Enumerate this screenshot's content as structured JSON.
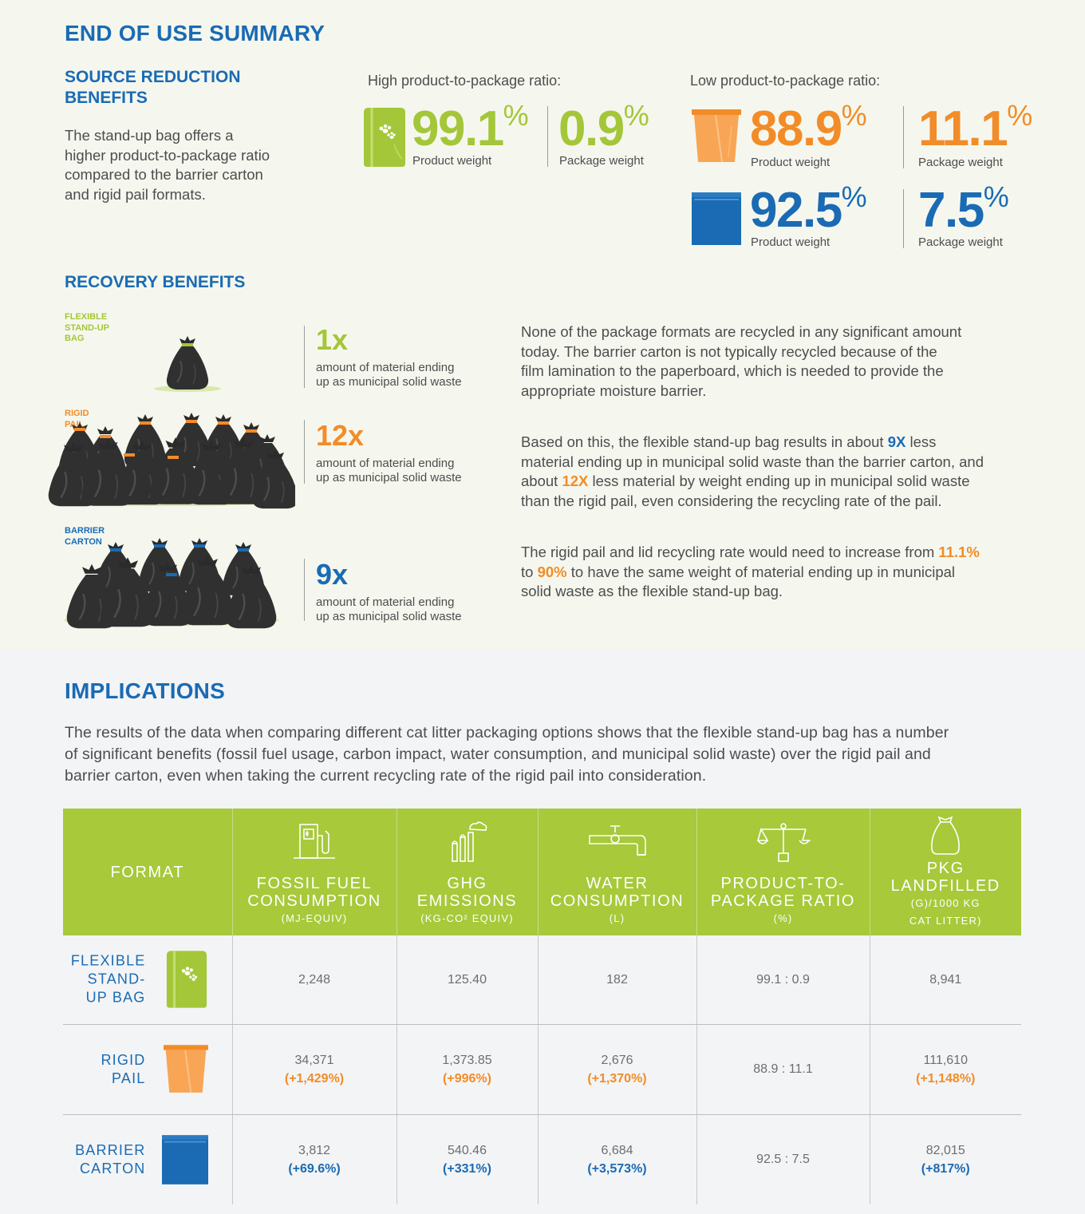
{
  "summary": {
    "title": "END OF USE SUMMARY",
    "source": {
      "heading_line1": "SOURCE REDUCTION",
      "heading_line2": "BENEFITS",
      "text_lines": [
        "The stand-up bag offers a",
        "higher product-to-package ratio",
        "compared to the barrier carton",
        "and rigid pail formats."
      ]
    },
    "high_ratio": {
      "heading": "High product-to-package ratio:",
      "product_value": "99.1",
      "package_value": "0.9",
      "product_label": "Product weight",
      "package_label": "Package weight"
    },
    "low_ratio": {
      "heading": "Low product-to-package ratio:",
      "pail_product_value": "88.9",
      "pail_package_value": "11.1",
      "carton_product_value": "92.5",
      "carton_package_value": "7.5",
      "product_label": "Product weight",
      "package_label": "Package weight"
    },
    "percent_sign": "%"
  },
  "recovery": {
    "heading": "RECOVERY BENEFITS",
    "items": [
      {
        "label_lines": [
          "FLEXIBLE",
          "STAND-UP",
          "BAG"
        ],
        "multiplier": "1x",
        "desc_line1": "amount of material ending",
        "desc_line2": "up as municipal solid waste",
        "color": "#a4c639"
      },
      {
        "label_lines": [
          "RIGID",
          "PAIL"
        ],
        "multiplier": "12x",
        "desc_line1": "amount of material ending",
        "desc_line2": "up as municipal solid waste",
        "color": "#f28c28"
      },
      {
        "label_lines": [
          "BARRIER",
          "CARTON"
        ],
        "multiplier": "9x",
        "desc_line1": "amount of material ending",
        "desc_line2": "up as municipal solid waste",
        "color": "#1a6bb4"
      }
    ],
    "para1_lines": [
      "None of the package formats are recycled in any significant amount",
      "today. The barrier carton is not typically recycled because of the",
      "film lamination to the paperboard, which is needed to provide the",
      "appropriate moisture barrier."
    ],
    "para2": {
      "l1a": "Based on this, the flexible stand-up bag results in about ",
      "l1b": "9X",
      "l1c": " less",
      "l2": "material ending up in municipal solid waste than the barrier carton, and",
      "l3a": "about ",
      "l3b": "12X",
      "l3c": " less material by weight ending up in municipal solid waste",
      "l4": "than the rigid pail, even considering the recycling rate of the pail."
    },
    "para3": {
      "l1a": "The rigid pail and lid recycling rate would need to increase from ",
      "l1b": "11.1%",
      "l2a": "to ",
      "l2b": "90%",
      "l2c": " to have the same weight of material ending up in municipal",
      "l3": "solid waste as the flexible stand-up bag."
    }
  },
  "implications": {
    "heading": "IMPLICATIONS",
    "text_lines": [
      "The results of the data when comparing different cat litter packaging options shows that the flexible stand-up bag has a number",
      "of significant benefits (fossil fuel usage, carbon impact, water consumption, and municipal solid waste) over the rigid pail and",
      "barrier carton, even when taking the current recycling rate of the rigid pail into consideration."
    ]
  },
  "table": {
    "headers": [
      {
        "main_lines": [
          "FORMAT"
        ],
        "sub_lines": [],
        "icon": ""
      },
      {
        "main_lines": [
          "FOSSIL FUEL",
          "CONSUMPTION"
        ],
        "sub_lines": [
          "(MJ-EQUIV)"
        ],
        "icon": "fuel-pump-icon"
      },
      {
        "main_lines": [
          "GHG",
          "EMISSIONS"
        ],
        "sub_lines": [
          "(KG-CO² EQUIV)"
        ],
        "icon": "factory-icon"
      },
      {
        "main_lines": [
          "WATER",
          "CONSUMPTION"
        ],
        "sub_lines": [
          "(L)"
        ],
        "icon": "faucet-icon"
      },
      {
        "main_lines": [
          "PRODUCT-TO-",
          "PACKAGE RATIO"
        ],
        "sub_lines": [
          "(%)"
        ],
        "icon": "scale-icon"
      },
      {
        "main_lines": [
          "PKG",
          "LANDFILLED"
        ],
        "sub_lines": [
          "(G)/1000 KG",
          "CAT LITTER)"
        ],
        "icon": "bag-icon"
      }
    ],
    "rows": [
      {
        "format_lines": [
          "FLEXIBLE",
          "STAND-",
          "UP BAG"
        ],
        "icon": "bag-icon",
        "cells": [
          {
            "value": "2,248",
            "pct": ""
          },
          {
            "value": "125.40",
            "pct": ""
          },
          {
            "value": "182",
            "pct": ""
          },
          {
            "value": "99.1 : 0.9",
            "pct": ""
          },
          {
            "value": "8,941",
            "pct": ""
          }
        ],
        "pct_color": "#f28c28"
      },
      {
        "format_lines": [
          "RIGID",
          "PAIL"
        ],
        "icon": "pail-icon",
        "cells": [
          {
            "value": "34,371",
            "pct": "(+1,429%)"
          },
          {
            "value": "1,373.85",
            "pct": "(+996%)"
          },
          {
            "value": "2,676",
            "pct": "(+1,370%)"
          },
          {
            "value": "88.9 : 11.1",
            "pct": ""
          },
          {
            "value": "111,610",
            "pct": "(+1,148%)"
          }
        ],
        "pct_color": "#f28c28"
      },
      {
        "format_lines": [
          "BARRIER",
          "CARTON"
        ],
        "icon": "carton-icon",
        "cells": [
          {
            "value": "3,812",
            "pct": "(+69.6%)"
          },
          {
            "value": "540.46",
            "pct": "(+331%)"
          },
          {
            "value": "6,684",
            "pct": "(+3,573%)"
          },
          {
            "value": "92.5 : 7.5",
            "pct": ""
          },
          {
            "value": "82,015",
            "pct": "(+817%)"
          }
        ],
        "pct_color": "#1a6bb4"
      }
    ]
  },
  "colors": {
    "blue": "#1a6bb4",
    "green": "#a4c639",
    "orange": "#f28c28",
    "header_green": "#a7c93a"
  }
}
